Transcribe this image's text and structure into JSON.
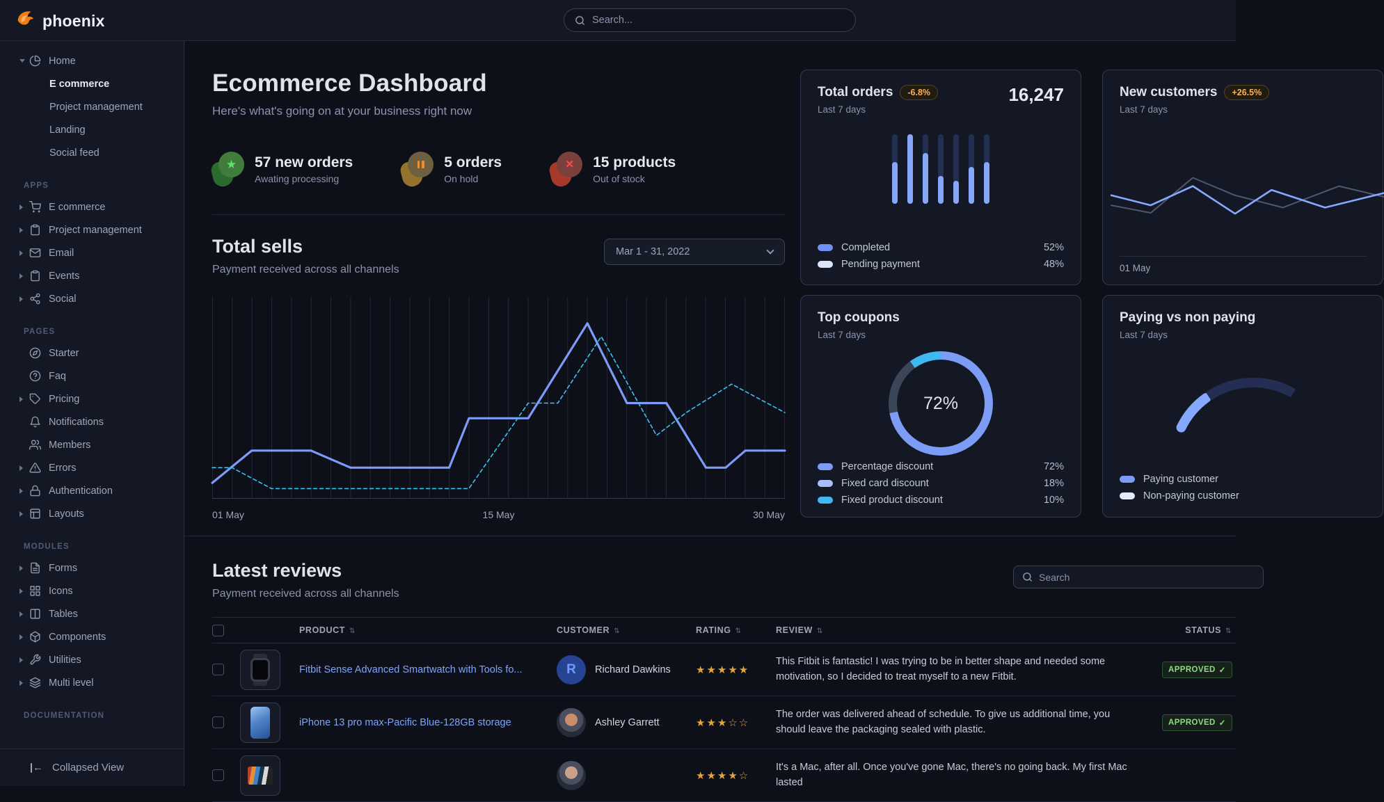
{
  "brand": {
    "name": "phoenix"
  },
  "topbar": {
    "search_placeholder": "Search..."
  },
  "sidebar": {
    "home": {
      "label": "Home",
      "icon": "pie",
      "children": [
        {
          "label": "E commerce",
          "active": true
        },
        {
          "label": "Project management",
          "active": false
        },
        {
          "label": "Landing",
          "active": false
        },
        {
          "label": "Social feed",
          "active": false
        }
      ]
    },
    "sections": [
      {
        "label": "APPS",
        "items": [
          {
            "label": "E commerce",
            "icon": "cart",
            "caret": true
          },
          {
            "label": "Project management",
            "icon": "clipboard",
            "caret": true
          },
          {
            "label": "Email",
            "icon": "mail",
            "caret": true
          },
          {
            "label": "Events",
            "icon": "clipboard",
            "caret": true
          },
          {
            "label": "Social",
            "icon": "share",
            "caret": true
          }
        ]
      },
      {
        "label": "PAGES",
        "items": [
          {
            "label": "Starter",
            "icon": "compass",
            "caret": false
          },
          {
            "label": "Faq",
            "icon": "help",
            "caret": false
          },
          {
            "label": "Pricing",
            "icon": "tag",
            "caret": true
          },
          {
            "label": "Notifications",
            "icon": "bell",
            "caret": false
          },
          {
            "label": "Members",
            "icon": "users",
            "caret": false
          },
          {
            "label": "Errors",
            "icon": "alert",
            "caret": true
          },
          {
            "label": "Authentication",
            "icon": "lock",
            "caret": true
          },
          {
            "label": "Layouts",
            "icon": "layout",
            "caret": true
          }
        ]
      },
      {
        "label": "MODULES",
        "items": [
          {
            "label": "Forms",
            "icon": "file",
            "caret": true
          },
          {
            "label": "Icons",
            "icon": "grid",
            "caret": true
          },
          {
            "label": "Tables",
            "icon": "columns",
            "caret": true
          },
          {
            "label": "Components",
            "icon": "box",
            "caret": true
          },
          {
            "label": "Utilities",
            "icon": "tool",
            "caret": true
          },
          {
            "label": "Multi level",
            "icon": "layers",
            "caret": true
          }
        ]
      },
      {
        "label": "DOCUMENTATION",
        "items": []
      }
    ],
    "footer": {
      "label": "Collapsed View"
    }
  },
  "header": {
    "title": "Ecommerce Dashboard",
    "subtitle": "Here's what's going on at your business right now"
  },
  "stats": [
    {
      "value": "57 new orders",
      "caption": "Awating processing",
      "icon": "star",
      "variant": "success"
    },
    {
      "value": "5 orders",
      "caption": "On hold",
      "icon": "pause",
      "variant": "warning"
    },
    {
      "value": "15 products",
      "caption": "Out of stock",
      "icon": "cross",
      "variant": "danger"
    }
  ],
  "total_sells": {
    "title": "Total sells",
    "subtitle": "Payment received across all channels",
    "date_range": "Mar 1 - 31, 2022",
    "chart_data": {
      "type": "line",
      "x_ticks": [
        "01 May",
        "15 May",
        "30 May"
      ],
      "x_range": [
        0,
        29
      ],
      "y_range": [
        0,
        100
      ],
      "gridlines": 30,
      "series": [
        {
          "name": "sells-current",
          "style": "solid",
          "color": "#7d9bf8",
          "points": [
            [
              0,
              8
            ],
            [
              2,
              25
            ],
            [
              5,
              25
            ],
            [
              7,
              16
            ],
            [
              12,
              16
            ],
            [
              13,
              42
            ],
            [
              16,
              42
            ],
            [
              19,
              92
            ],
            [
              21,
              50
            ],
            [
              23,
              50
            ],
            [
              25,
              16
            ],
            [
              26,
              16
            ],
            [
              27,
              25
            ],
            [
              29,
              25
            ]
          ]
        },
        {
          "name": "sells-previous",
          "style": "dashed",
          "color": "#3bc3ee",
          "points": [
            [
              0,
              16
            ],
            [
              1,
              16
            ],
            [
              3,
              5
            ],
            [
              13,
              5
            ],
            [
              16,
              50
            ],
            [
              17.5,
              50
            ],
            [
              19.7,
              85
            ],
            [
              22.5,
              33
            ],
            [
              24,
              45
            ],
            [
              26.3,
              60
            ],
            [
              29,
              45
            ]
          ]
        }
      ]
    }
  },
  "cards": {
    "total_orders": {
      "title": "Total orders",
      "badge": "-6.8%",
      "period": "Last 7 days",
      "value": "16,247",
      "chart_data": {
        "type": "bar",
        "bars": 7,
        "completed_fractions": [
          0.6,
          1.0,
          0.73,
          0.4,
          0.33,
          0.53,
          0.6
        ],
        "colors": {
          "completed": "#86a6f9",
          "pending": "#222e52"
        }
      },
      "legend": [
        {
          "label": "Completed",
          "value": "52%",
          "swatch": "#6f90f5"
        },
        {
          "label": "Pending payment",
          "value": "48%",
          "swatch": "#dbe3fb"
        }
      ]
    },
    "new_customers": {
      "title": "New customers",
      "badge": "+26.5%",
      "period": "Last 7 days",
      "x_tick": "01 May",
      "chart_data": {
        "type": "line",
        "series": [
          {
            "name": "previous",
            "color": "#4e5870",
            "points": [
              [
                3,
                61
              ],
              [
                17,
                71
              ],
              [
                32,
                25
              ],
              [
                47,
                48
              ],
              [
                64,
                64
              ],
              [
                84,
                36
              ],
              [
                100,
                50
              ]
            ]
          },
          {
            "name": "current",
            "color": "#85a9ff",
            "points": [
              [
                3,
                48
              ],
              [
                17,
                61
              ],
              [
                32,
                36
              ],
              [
                47,
                72
              ],
              [
                60,
                41
              ],
              [
                79,
                64
              ],
              [
                100,
                45
              ]
            ]
          }
        ]
      }
    },
    "top_coupons": {
      "title": "Top coupons",
      "period": "Last 7 days",
      "center_value": "72%",
      "chart_data": {
        "type": "donut",
        "segments": [
          {
            "label": "Percentage discount",
            "value": 72,
            "color": "#7c9cf6",
            "swatch": "#7c9cf6",
            "display": "72%"
          },
          {
            "label": "Fixed card discount",
            "value": 18,
            "color": "#3c4659",
            "swatch": "#a8bdfa",
            "display": "18%"
          },
          {
            "label": "Fixed product discount",
            "value": 10,
            "color": "#40b8f1",
            "swatch": "#40b8f1",
            "display": "10%"
          }
        ]
      }
    },
    "paying": {
      "title": "Paying vs non paying",
      "period": "Last 7 days",
      "chart_data": {
        "type": "donut-partial",
        "arc_colors": {
          "paying": "#85a9ff",
          "nonpaying": "#232e52"
        }
      },
      "legend": [
        {
          "label": "Paying customer",
          "swatch": "#7c9cf6"
        },
        {
          "label": "Non-paying customer",
          "swatch": "#e2ebfc"
        }
      ]
    }
  },
  "reviews": {
    "title": "Latest reviews",
    "subtitle": "Payment received across all channels",
    "search_placeholder": "Search",
    "columns": [
      "PRODUCT",
      "CUSTOMER",
      "RATING",
      "REVIEW",
      "STATUS"
    ],
    "rows": [
      {
        "product": "Fitbit Sense Advanced Smartwatch with Tools fo...",
        "thumb": "smartwatch",
        "customer": "Richard Dawkins",
        "avatar": {
          "type": "initial",
          "text": "R"
        },
        "rating": 5,
        "review": "This Fitbit is fantastic! I was trying to be in better shape and needed some motivation, so I decided to treat myself to a new Fitbit.",
        "status": "APPROVED"
      },
      {
        "product": "iPhone 13 pro max-Pacific Blue-128GB storage",
        "thumb": "iphone",
        "customer": "Ashley Garrett",
        "avatar": {
          "type": "photo",
          "tone": "#c98d6b"
        },
        "rating": 3,
        "review": "The order was delivered ahead of schedule. To give us additional time, you should leave the packaging sealed with plastic.",
        "status": "APPROVED"
      },
      {
        "product": "",
        "thumb": "macbook",
        "customer": "",
        "avatar": {
          "type": "photo",
          "tone": "#caa08a"
        },
        "rating": 4,
        "review": "It's a Mac, after all. Once you've gone Mac, there's no going back. My first Mac lasted",
        "status": ""
      }
    ]
  }
}
